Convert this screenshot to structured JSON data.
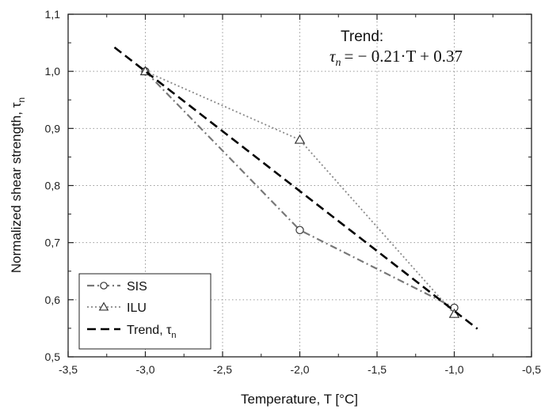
{
  "chart_data": {
    "type": "line",
    "xlabel": "Temperature, T [°C]",
    "ylabel": "Normalized shear strength, τ",
    "ylabel_subscript": "n",
    "xlim": [
      -3.5,
      -0.5
    ],
    "ylim": [
      0.5,
      1.1
    ],
    "x_ticks": [
      -3.5,
      -3.0,
      -2.5,
      -2.0,
      -1.5,
      -1.0,
      -0.5
    ],
    "x_tick_labels": [
      "-3,5",
      "-3,0",
      "-2,5",
      "-2,0",
      "-1,5",
      "-1,0",
      "-0,5"
    ],
    "y_ticks": [
      0.5,
      0.6,
      0.7,
      0.8,
      0.9,
      1.0,
      1.1
    ],
    "y_tick_labels": [
      "0,5",
      "0,6",
      "0,7",
      "0,8",
      "0,9",
      "1,0",
      "1,1"
    ],
    "grid": true,
    "legend_position": "bottom-left",
    "series": [
      {
        "name": "SIS",
        "marker": "circle",
        "line": "dash-dot",
        "color": "#777777",
        "x": [
          -3.0,
          -2.0,
          -1.0
        ],
        "y": [
          1.0,
          0.722,
          0.586
        ]
      },
      {
        "name": "ILU",
        "marker": "triangle",
        "line": "dotted",
        "color": "#888888",
        "x": [
          -3.0,
          -2.0,
          -1.0
        ],
        "y": [
          1.0,
          0.88,
          0.575
        ]
      },
      {
        "name": "Trend, τ",
        "name_subscript": "n",
        "marker": "none",
        "line": "dashed",
        "color": "#000000",
        "x": [
          -3.2,
          -0.85
        ],
        "y": [
          1.042,
          0.549
        ]
      }
    ],
    "annotation": {
      "title": "Trend:",
      "equation_lhs": "τ",
      "equation_lhs_sub": "n",
      "equation_rhs": "= − 0.21·T + 0.37"
    }
  }
}
